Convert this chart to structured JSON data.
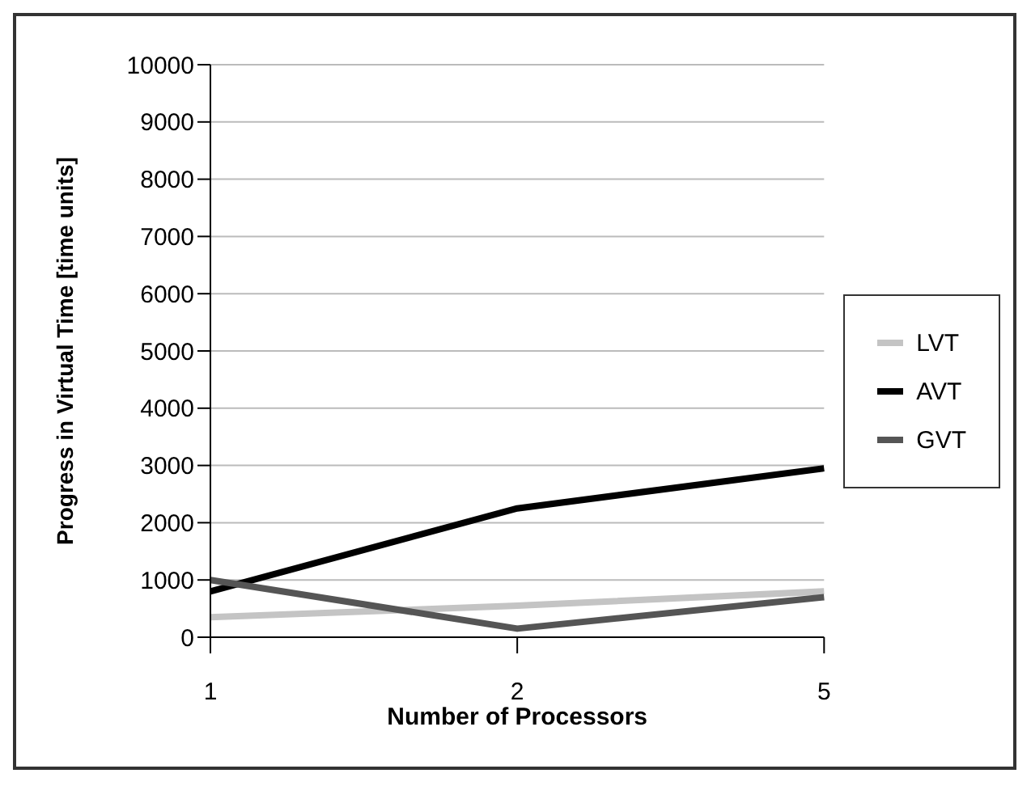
{
  "chart_data": {
    "type": "line",
    "xlabel": "Number of Processors",
    "ylabel": "Progress in Virtual Time [time units]",
    "categories": [
      "1",
      "2",
      "5"
    ],
    "series": [
      {
        "name": "LVT",
        "color": "#c4c4c4",
        "values": [
          350,
          550,
          800
        ]
      },
      {
        "name": "AVT",
        "color": "#000000",
        "values": [
          800,
          2250,
          2950
        ]
      },
      {
        "name": "GVT",
        "color": "#555555",
        "values": [
          1000,
          150,
          700
        ]
      }
    ],
    "ylim": [
      0,
      10000
    ],
    "yticks": [
      0,
      1000,
      2000,
      3000,
      4000,
      5000,
      6000,
      7000,
      8000,
      9000,
      10000
    ],
    "grid": "y",
    "legend": "right",
    "marker": "none",
    "line_style": "solid"
  }
}
